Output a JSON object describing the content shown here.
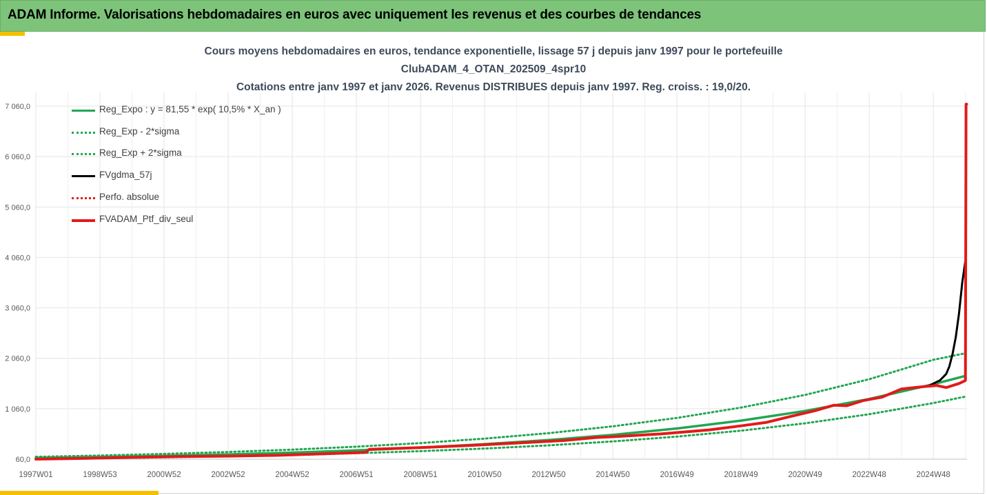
{
  "header": {
    "title": "ADAM Informe. Valorisations hebdomadaires en euros avec uniquement les revenus et des courbes de tendances"
  },
  "colors": {
    "banner": "#7dc47a",
    "accent": "#f5c000",
    "regression": "#22a652",
    "smoothed": "#000000",
    "portfolio": "#e21a1a",
    "title_text": "#3d4a5a",
    "gridline": "#e4e4e4"
  },
  "chart_data": {
    "type": "line",
    "title": "Cours moyens hebdomadaires  en euros, tendance exponentielle, lissage 57 j depuis janv 1997 pour le portefeuille",
    "title_line2": "ClubADAM_4_OTAN_202509_4spr10",
    "subtitle": "Cotations entre janv 1997 et janv 2026. Revenus DISTRIBUES depuis janv 1997. Reg. croiss. : 19,0/20.",
    "xlabel": "",
    "ylabel": "",
    "x_range": [
      1997.0,
      2026.05
    ],
    "ylim": [
      60,
      7060
    ],
    "y_ticks": [
      "60,0",
      "1 060,0",
      "2 060,0",
      "3 060,0",
      "4 060,0",
      "5 060,0",
      "6 060,0",
      "7 060,0"
    ],
    "x_ticks": [
      {
        "label": "1997W01",
        "x": 1997.0
      },
      {
        "label": "1998W53",
        "x": 1999.0
      },
      {
        "label": "2000W52",
        "x": 2001.0
      },
      {
        "label": "2002W52",
        "x": 2003.0
      },
      {
        "label": "2004W52",
        "x": 2005.0
      },
      {
        "label": "2006W51",
        "x": 2007.0
      },
      {
        "label": "2008W51",
        "x": 2009.0
      },
      {
        "label": "2010W50",
        "x": 2011.0
      },
      {
        "label": "2012W50",
        "x": 2013.0
      },
      {
        "label": "2014W50",
        "x": 2015.0
      },
      {
        "label": "2016W49",
        "x": 2017.0
      },
      {
        "label": "2018W49",
        "x": 2019.0
      },
      {
        "label": "2020W49",
        "x": 2021.0
      },
      {
        "label": "2022W48",
        "x": 2023.0
      },
      {
        "label": "2024W48",
        "x": 2025.0
      }
    ],
    "grid": true,
    "legend_position": "top-left",
    "series": [
      {
        "name": "Reg_Expo : y = 81,55 * exp( 10,5% *  X_an )",
        "style": "solid",
        "color": "#22a652",
        "width": 3.5,
        "x": [
          1997,
          1999,
          2001,
          2003,
          2005,
          2007,
          2009,
          2011,
          2013,
          2015,
          2017,
          2019,
          2021,
          2023,
          2025,
          2026
        ],
        "y": [
          82,
          101,
          125,
          154,
          190,
          234,
          289,
          356,
          439,
          542,
          668,
          824,
          1016,
          1253,
          1546,
          1712
        ]
      },
      {
        "name": "Reg_Exp - 2*sigma",
        "style": "dotted",
        "color": "#22a652",
        "width": 3,
        "x": [
          1997,
          1999,
          2001,
          2003,
          2005,
          2007,
          2009,
          2011,
          2013,
          2015,
          2017,
          2019,
          2021,
          2023,
          2025,
          2026
        ],
        "y": [
          62,
          77,
          95,
          117,
          144,
          178,
          219,
          270,
          333,
          411,
          507,
          625,
          771,
          951,
          1173,
          1300
        ]
      },
      {
        "name": "Reg_Exp + 2*sigma",
        "style": "dotted",
        "color": "#22a652",
        "width": 3,
        "x": [
          1997,
          1999,
          2001,
          2003,
          2005,
          2007,
          2009,
          2011,
          2013,
          2015,
          2017,
          2019,
          2021,
          2023,
          2025,
          2026
        ],
        "y": [
          107,
          133,
          164,
          202,
          249,
          307,
          379,
          467,
          576,
          711,
          877,
          1082,
          1334,
          1646,
          2030,
          2160
        ]
      },
      {
        "name": "FVgdma_57j",
        "style": "solid",
        "color": "#000000",
        "width": 3,
        "x": [
          2024.8,
          2025.0,
          2025.2,
          2025.4,
          2025.5,
          2025.6,
          2025.7,
          2025.8,
          2025.9,
          2026.0
        ],
        "y": [
          1500,
          1560,
          1620,
          1750,
          1900,
          2150,
          2480,
          2950,
          3550,
          4000
        ]
      },
      {
        "name": "Perfo. absolue",
        "style": "dotted",
        "color": "#e21a1a",
        "width": 3,
        "x": [],
        "y": []
      },
      {
        "name": "FVADAM_Ptf_div_seul",
        "style": "solid",
        "color": "#e21a1a",
        "width": 4,
        "x": [
          1997.0,
          1998.5,
          2000.0,
          2001.5,
          2003.0,
          2004.5,
          2006.0,
          2007.3,
          2007.4,
          2009.0,
          2010.5,
          2012.0,
          2013.5,
          2014.5,
          2015.0,
          2016.5,
          2018.0,
          2019.0,
          2019.8,
          2020.5,
          2021.3,
          2021.9,
          2022.3,
          2022.8,
          2023.4,
          2024.0,
          2024.7,
          2025.1,
          2025.4,
          2025.8,
          2026.0,
          2026.02,
          2026.04
        ],
        "y": [
          60,
          75,
          95,
          110,
          120,
          135,
          165,
          195,
          255,
          290,
          330,
          380,
          430,
          490,
          505,
          560,
          640,
          720,
          790,
          900,
          1020,
          1130,
          1120,
          1220,
          1290,
          1450,
          1500,
          1520,
          1480,
          1560,
          1620,
          7100,
          7100
        ]
      }
    ]
  }
}
